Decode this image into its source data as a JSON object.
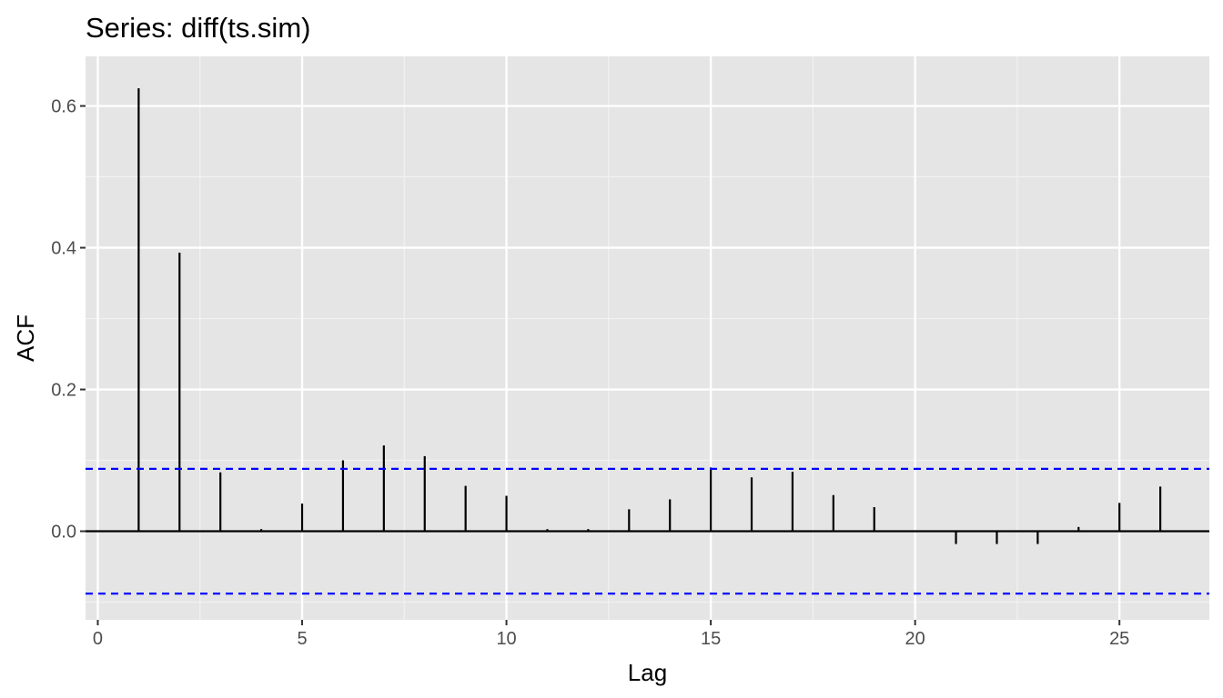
{
  "chart_data": {
    "type": "bar",
    "title": "Series: diff(ts.sim)",
    "xlabel": "Lag",
    "ylabel": "ACF",
    "x": [
      1,
      2,
      3,
      4,
      5,
      6,
      7,
      8,
      9,
      10,
      11,
      12,
      13,
      14,
      15,
      16,
      17,
      18,
      19,
      20,
      21,
      22,
      23,
      24,
      25,
      26
    ],
    "values": [
      0.625,
      0.393,
      0.083,
      0.003,
      0.039,
      0.1,
      0.121,
      0.106,
      0.064,
      0.05,
      0.003,
      0.003,
      0.031,
      0.045,
      0.09,
      0.076,
      0.084,
      0.051,
      0.034,
      0.0,
      -0.018,
      -0.018,
      -0.018,
      0.006,
      0.04,
      0.063
    ],
    "confidence_limit": 0.088,
    "xlim": [
      -0.3,
      27.2
    ],
    "ylim": [
      -0.125,
      0.67
    ],
    "x_ticks": [
      0,
      5,
      10,
      15,
      20,
      25
    ],
    "x_tick_labels": [
      "0",
      "5",
      "10",
      "15",
      "20",
      "25"
    ],
    "y_ticks": [
      0.0,
      0.2,
      0.4,
      0.6
    ],
    "y_tick_labels": [
      "0.0",
      "0.2",
      "0.4",
      "0.6"
    ],
    "grid": true,
    "colors": {
      "panel_background": "#e5e5e5",
      "grid_major": "#ffffff",
      "grid_minor": "#f2f2f2",
      "bar": "#000000",
      "confidence_line": "#0000ff",
      "tick_text": "#4d4d4d"
    }
  }
}
